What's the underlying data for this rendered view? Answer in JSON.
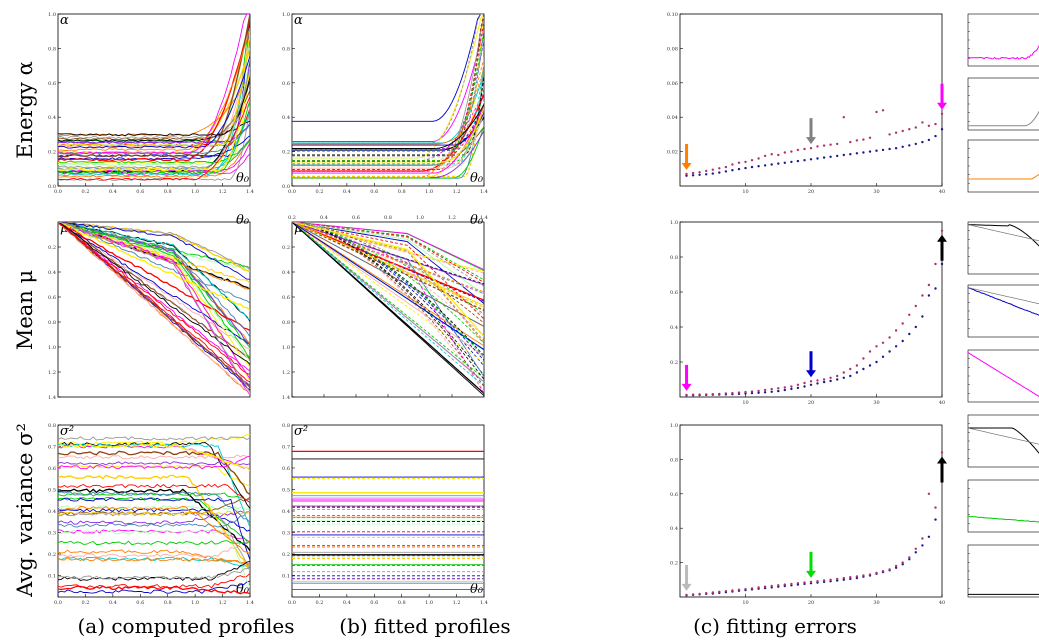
{
  "row_labels": [
    "Energy α",
    "Mean μ",
    "Avg. variance σ²"
  ],
  "captions": [
    "(a) computed profiles",
    "(b) fitted profiles",
    "(c) fitting errors"
  ],
  "colors": {
    "palette": [
      "#0000cc",
      "#ff7f00",
      "#ff00ff",
      "#00cc00",
      "#ffee00",
      "#ff0000",
      "#000000",
      "#999999",
      "#00cccc",
      "#ffaaaa",
      "#aaffaa",
      "#8a2be2",
      "#8b4513",
      "#ffcc00",
      "#4682b4"
    ],
    "error_series_a": "#1a1a8c",
    "error_series_b": "#b0306a"
  },
  "chart_data": [
    {
      "id": "energy-computed",
      "type": "line",
      "y_symbol": "α",
      "x_symbol": "θ₀",
      "xlim": [
        0,
        1.4
      ],
      "ylim": [
        0,
        1.0
      ],
      "x_ticks": [
        "0.0",
        "0.2",
        "0.4",
        "0.6",
        "0.8",
        "1.0",
        "1.2",
        "1.4"
      ],
      "y_ticks": [
        "0.0",
        "0.2",
        "0.4",
        "0.6",
        "0.8",
        "1.0"
      ]
    },
    {
      "id": "energy-fitted",
      "type": "line",
      "y_symbol": "α",
      "x_symbol": "θ₀",
      "xlim": [
        0,
        1.4
      ],
      "ylim": [
        0,
        1.0
      ],
      "x_ticks": [
        "0.0",
        "0.2",
        "0.4",
        "0.6",
        "0.8",
        "1.0",
        "1.2",
        "1.4"
      ],
      "y_ticks": [
        "0.0",
        "0.2",
        "0.4",
        "0.6",
        "0.8",
        "1.0"
      ]
    },
    {
      "id": "energy-errors",
      "type": "scatter",
      "xlim": [
        0,
        40
      ],
      "ylim": [
        0,
        0.1
      ],
      "x_ticks": [
        "10",
        "20",
        "30",
        "40"
      ],
      "y_ticks": [
        "0.02",
        "0.04",
        "0.06",
        "0.08",
        "0.10"
      ],
      "series": [
        {
          "values": [
            0.006,
            0.0062,
            0.0065,
            0.0068,
            0.0072,
            0.0078,
            0.0085,
            0.0092,
            0.0098,
            0.0104,
            0.011,
            0.0115,
            0.012,
            0.0125,
            0.013,
            0.0135,
            0.014,
            0.0145,
            0.015,
            0.0155,
            0.016,
            0.0165,
            0.017,
            0.0175,
            0.018,
            0.0185,
            0.019,
            0.0195,
            0.02,
            0.0205,
            0.021,
            0.0215,
            0.022,
            0.0228,
            0.0236,
            0.0245,
            0.0255,
            0.0268,
            0.029,
            0.033
          ]
        },
        {
          "values": [
            0.007,
            0.0075,
            0.008,
            0.0088,
            0.0095,
            0.0103,
            0.011,
            0.0125,
            0.0135,
            0.014,
            0.015,
            0.016,
            0.0175,
            0.0185,
            0.018,
            0.0195,
            0.02,
            0.021,
            0.0215,
            0.022,
            0.023,
            0.0235,
            0.024,
            0.0245,
            0.04,
            0.0255,
            0.0265,
            0.027,
            0.028,
            0.043,
            0.044,
            0.03,
            0.031,
            0.032,
            0.033,
            0.034,
            0.037,
            0.035,
            0.036,
            0.042
          ]
        }
      ],
      "arrows": [
        {
          "x": 1,
          "color": "#ff7f00",
          "dir": "down"
        },
        {
          "x": 20,
          "color": "#808080",
          "dir": "down"
        },
        {
          "x": 40,
          "color": "#ff00ff",
          "dir": "down"
        }
      ]
    },
    {
      "id": "mean-computed",
      "type": "line",
      "y_symbol": "μ",
      "x_symbol": "θ₀",
      "xlim": [
        0,
        1.4
      ],
      "ylim": [
        0,
        1.4
      ],
      "x_ticks": [],
      "y_ticks": [
        "0.2",
        "0.4",
        "0.6",
        "0.8",
        "1.0",
        "1.2",
        "1.4"
      ]
    },
    {
      "id": "mean-fitted",
      "type": "line",
      "y_symbol": "μ",
      "x_symbol": "θ₀",
      "xlim": [
        0,
        1.4
      ],
      "ylim": [
        0,
        1.4
      ],
      "x_ticks": [
        "0.2",
        "0.4",
        "0.6",
        "0.8",
        "1.0",
        "1.2",
        "1.4"
      ],
      "y_ticks": [
        "0.2",
        "0.4",
        "0.6",
        "0.8",
        "1.0",
        "1.2",
        "1.4"
      ]
    },
    {
      "id": "mean-errors",
      "type": "scatter",
      "xlim": [
        0,
        40
      ],
      "ylim": [
        0,
        1.0
      ],
      "x_ticks": [
        "10",
        "20",
        "30",
        "40"
      ],
      "y_ticks": [
        "0.2",
        "0.4",
        "0.6",
        "0.8",
        "1.0"
      ],
      "series": [
        {
          "values": [
            0.01,
            0.01,
            0.011,
            0.012,
            0.013,
            0.014,
            0.015,
            0.016,
            0.018,
            0.02,
            0.022,
            0.024,
            0.027,
            0.03,
            0.034,
            0.04,
            0.046,
            0.052,
            0.06,
            0.07,
            0.078,
            0.085,
            0.092,
            0.1,
            0.11,
            0.12,
            0.14,
            0.16,
            0.18,
            0.2,
            0.23,
            0.26,
            0.29,
            0.32,
            0.36,
            0.4,
            0.46,
            0.58,
            0.62,
            0.76
          ]
        },
        {
          "values": [
            0.012,
            0.013,
            0.014,
            0.015,
            0.016,
            0.018,
            0.02,
            0.022,
            0.025,
            0.028,
            0.031,
            0.035,
            0.04,
            0.045,
            0.05,
            0.055,
            0.06,
            0.07,
            0.08,
            0.09,
            0.095,
            0.1,
            0.11,
            0.12,
            0.14,
            0.16,
            0.18,
            0.22,
            0.26,
            0.29,
            0.31,
            0.34,
            0.38,
            0.42,
            0.47,
            0.52,
            0.58,
            0.64,
            0.76,
            0.95
          ]
        }
      ],
      "arrows": [
        {
          "x": 1,
          "color": "#ff00ff",
          "dir": "down"
        },
        {
          "x": 20,
          "color": "#0000cc",
          "dir": "down"
        },
        {
          "x": 40,
          "color": "#000000",
          "dir": "up"
        }
      ]
    },
    {
      "id": "variance-computed",
      "type": "line",
      "y_symbol": "σ²",
      "x_symbol": "θ₀",
      "xlim": [
        0,
        1.4
      ],
      "ylim": [
        0,
        0.8
      ],
      "x_ticks": [
        "0.0",
        "0.2",
        "0.4",
        "0.6",
        "0.8",
        "1.0",
        "1.2",
        "1.4"
      ],
      "y_ticks": [
        "0.1",
        "0.2",
        "0.3",
        "0.4",
        "0.5",
        "0.6",
        "0.7",
        "0.8"
      ]
    },
    {
      "id": "variance-fitted",
      "type": "line",
      "y_symbol": "σ²",
      "x_symbol": "θ₀",
      "xlim": [
        0,
        1.4
      ],
      "ylim": [
        0,
        0.8
      ],
      "x_ticks": [
        "0.0",
        "0.2",
        "0.4",
        "0.6",
        "0.8",
        "1.0",
        "1.2",
        "1.4"
      ],
      "y_ticks": [
        "0.1",
        "0.2",
        "0.3",
        "0.4",
        "0.5",
        "0.6",
        "0.7",
        "0.8"
      ]
    },
    {
      "id": "variance-errors",
      "type": "scatter",
      "xlim": [
        0,
        40
      ],
      "ylim": [
        0,
        1.0
      ],
      "x_ticks": [
        "10",
        "20",
        "30",
        "40"
      ],
      "y_ticks": [
        "0.2",
        "0.4",
        "0.6",
        "0.8",
        "1.0"
      ],
      "series": [
        {
          "values": [
            0.01,
            0.012,
            0.015,
            0.018,
            0.02,
            0.024,
            0.028,
            0.032,
            0.036,
            0.04,
            0.044,
            0.048,
            0.052,
            0.056,
            0.06,
            0.064,
            0.068,
            0.072,
            0.076,
            0.08,
            0.084,
            0.088,
            0.092,
            0.096,
            0.1,
            0.105,
            0.11,
            0.118,
            0.125,
            0.135,
            0.145,
            0.155,
            0.17,
            0.19,
            0.22,
            0.26,
            0.3,
            0.35,
            0.45,
            0.68
          ]
        },
        {
          "values": [
            0.012,
            0.015,
            0.018,
            0.022,
            0.026,
            0.03,
            0.034,
            0.038,
            0.042,
            0.046,
            0.05,
            0.055,
            0.06,
            0.064,
            0.068,
            0.072,
            0.076,
            0.08,
            0.084,
            0.088,
            0.092,
            0.096,
            0.1,
            0.105,
            0.11,
            0.115,
            0.12,
            0.125,
            0.13,
            0.14,
            0.15,
            0.16,
            0.18,
            0.2,
            0.23,
            0.28,
            0.34,
            0.6,
            0.52,
            0.84
          ]
        }
      ],
      "arrows": [
        {
          "x": 1,
          "color": "#bbbbbb",
          "dir": "down"
        },
        {
          "x": 20,
          "color": "#00dd00",
          "dir": "down"
        },
        {
          "x": 40,
          "color": "#000000",
          "dir": "up"
        }
      ]
    }
  ]
}
